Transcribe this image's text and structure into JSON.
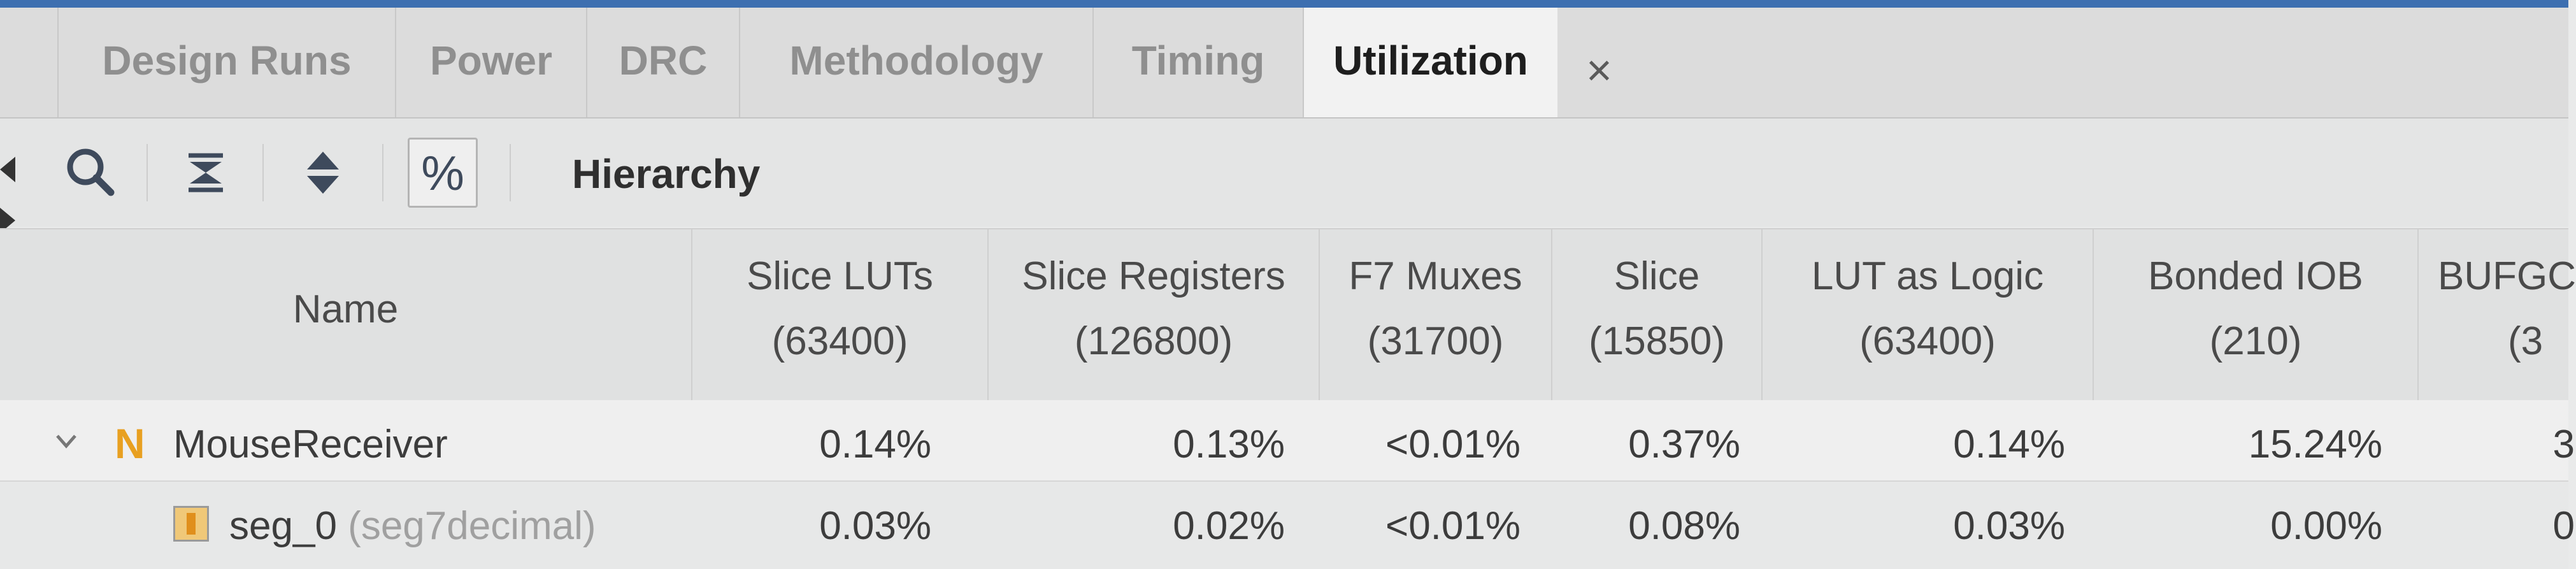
{
  "tabs": [
    {
      "label": "Design Runs",
      "active": false
    },
    {
      "label": "Power",
      "active": false
    },
    {
      "label": "DRC",
      "active": false
    },
    {
      "label": "Methodology",
      "active": false
    },
    {
      "label": "Timing",
      "active": false
    },
    {
      "label": "Utilization",
      "active": true
    }
  ],
  "tab_close_glyph": "×",
  "toolbar": {
    "icons": [
      "search-icon",
      "collapse-all-icon",
      "expand-all-icon",
      "percent-icon"
    ],
    "percent_glyph": "%",
    "view_label": "Hierarchy"
  },
  "table": {
    "name_header": "Name",
    "columns": [
      {
        "label": "Slice LUTs",
        "total": "(63400)"
      },
      {
        "label": "Slice Registers",
        "total": "(126800)"
      },
      {
        "label": "F7 Muxes",
        "total": "(31700)"
      },
      {
        "label": "Slice",
        "total": "(15850)"
      },
      {
        "label": "LUT as Logic",
        "total": "(63400)"
      },
      {
        "label": "Bonded IOB",
        "total": "(210)"
      },
      {
        "label": "BUFGC",
        "total": "(3"
      }
    ],
    "rows": [
      {
        "expander": "chevron-down-icon",
        "icon": "netlist-n-icon",
        "icon_glyph": "N",
        "name": "MouseReceiver",
        "module": "",
        "values": [
          "0.14%",
          "0.13%",
          "<0.01%",
          "0.37%",
          "0.14%",
          "15.24%",
          "3"
        ]
      },
      {
        "expander": "",
        "icon": "instance-icon",
        "name": "seg_0",
        "module": "(seg7decimal)",
        "values": [
          "0.03%",
          "0.02%",
          "<0.01%",
          "0.08%",
          "0.03%",
          "0.00%",
          "0"
        ]
      }
    ]
  },
  "colors": {
    "accent": "#3d6fb0",
    "netlist_icon": "#e8a021"
  }
}
